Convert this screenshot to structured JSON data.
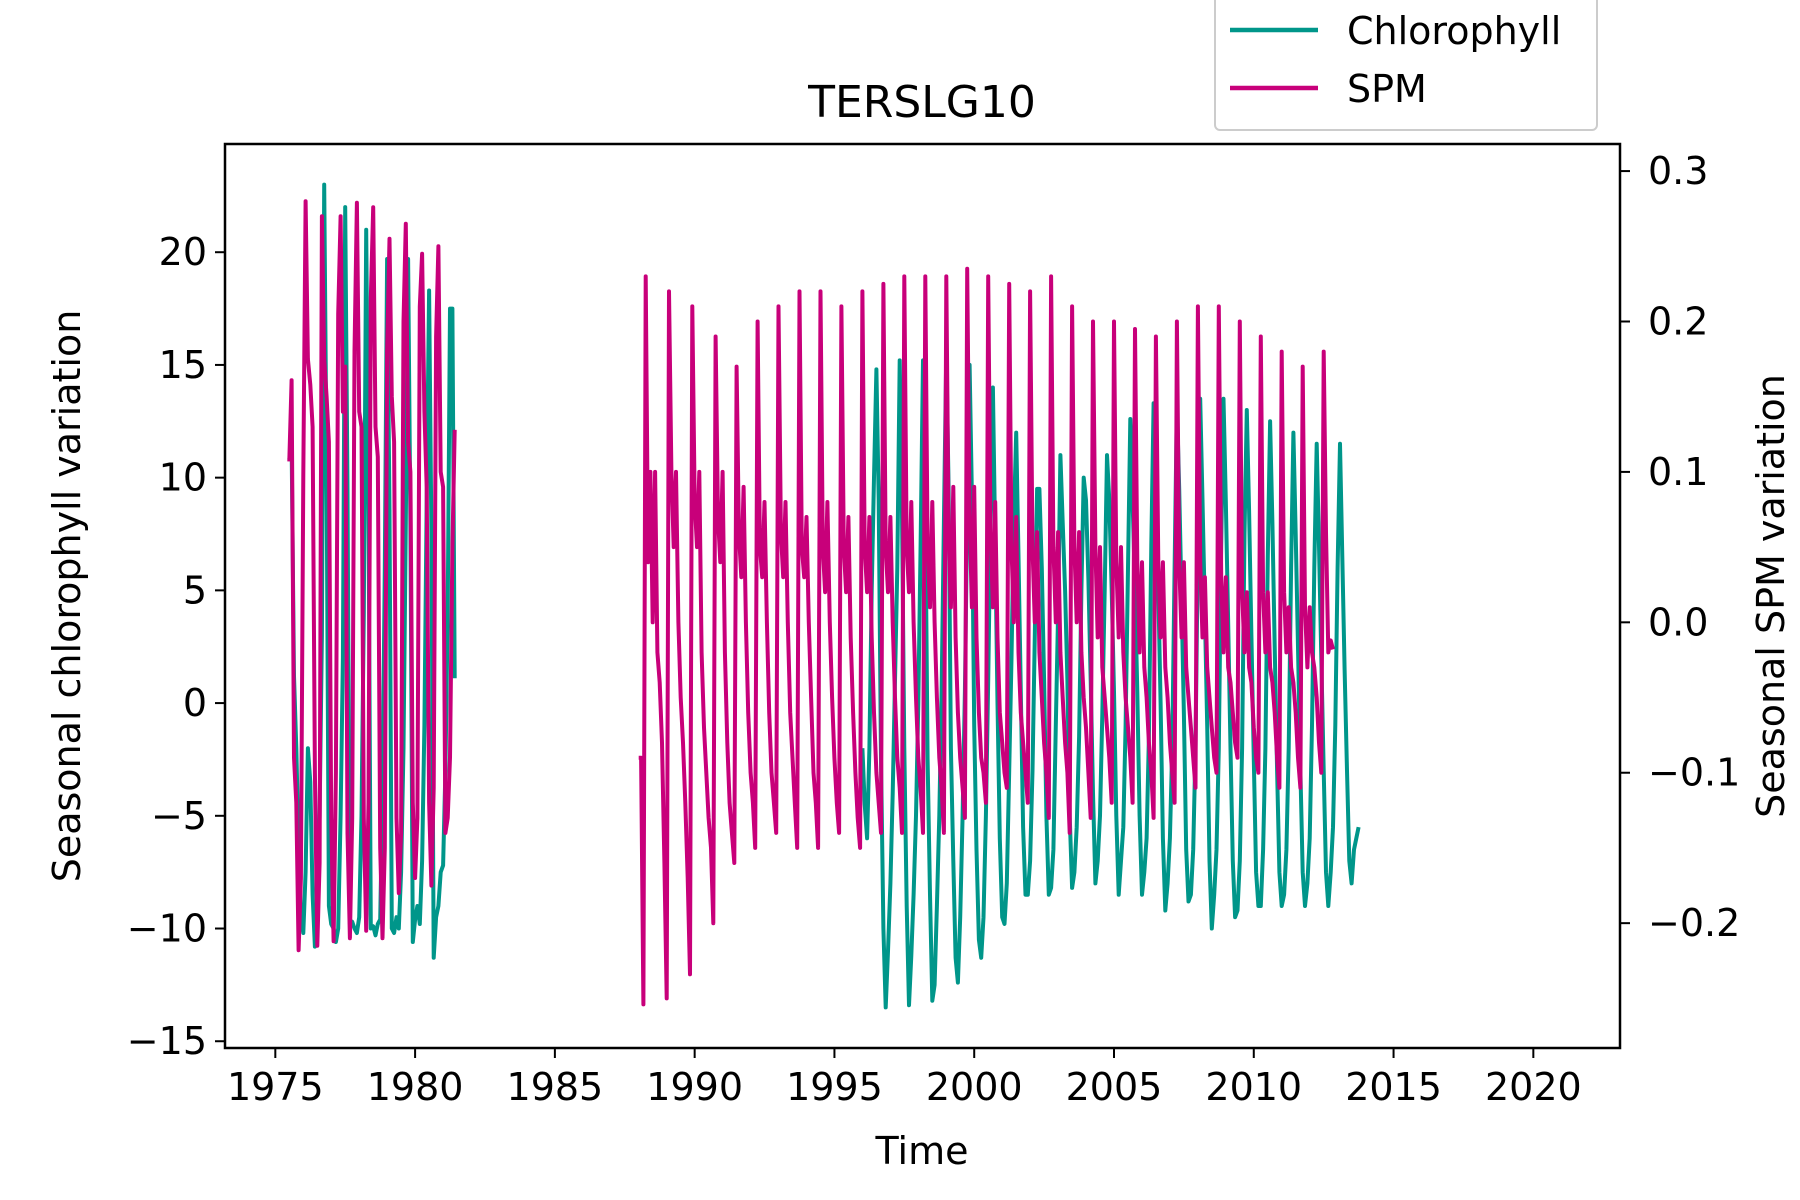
{
  "chart_data": {
    "type": "line",
    "title": "TERSLG10",
    "xlabel": "Time",
    "ylabel_left": "Seasonal chlorophyll variation",
    "ylabel_right": "Seasonal SPM variation",
    "xlim": [
      1973.2,
      2023.1
    ],
    "ylim_left": [
      -15.3,
      24.8
    ],
    "ylim_right": [
      -0.283,
      0.318
    ],
    "x_ticks": [
      1975,
      1980,
      1985,
      1990,
      1995,
      2000,
      2005,
      2010,
      2015,
      2020
    ],
    "x_tick_labels": [
      "1975",
      "1980",
      "1985",
      "1990",
      "1995",
      "2000",
      "2005",
      "2010",
      "2015",
      "2020"
    ],
    "y_left_ticks": [
      -15,
      -10,
      -5,
      0,
      5,
      10,
      15,
      20
    ],
    "y_left_tick_labels": [
      "−15",
      "−10",
      "−5",
      "0",
      "5",
      "10",
      "15",
      "20"
    ],
    "y_right_ticks": [
      -0.2,
      -0.1,
      0.0,
      0.1,
      0.2,
      0.3
    ],
    "y_right_tick_labels": [
      "−0.2",
      "−0.1",
      "0.0",
      "0.1",
      "0.2",
      "0.3"
    ],
    "grid": false,
    "legend_position": "top-right, above plot",
    "series": [
      {
        "name": "Chlorophyll",
        "axis": "left",
        "color": "#00968a",
        "segments": [
          {
            "start": 1975.5,
            "step": 0.0833333,
            "values": [
              10.8,
              11.5,
              1.2,
              -2.0,
              -6.5,
              -9.5,
              -10.2,
              -7.5,
              -2.0,
              -3.5,
              -8.5,
              -10.8,
              -9.0,
              -5.0,
              3.0,
              23.0,
              10.2,
              -9.0,
              -9.8,
              -10.0,
              -10.6,
              -10.0,
              -5.0,
              2.0,
              22.0,
              9.5,
              -9.8,
              -9.7,
              -10.0,
              -10.2,
              -9.5,
              -5.0,
              4.0,
              21.0,
              8.8,
              -10.0,
              -9.9,
              -10.3,
              -9.8,
              -9.6,
              -4.0,
              6.0,
              19.7,
              8.5,
              -10.0,
              -10.2,
              -9.5,
              -10.0,
              -7.5,
              -2.0,
              8.0,
              19.7,
              8.0,
              -10.6,
              -9.6,
              -9.0,
              -9.8,
              -7.0,
              -1.0,
              9.0,
              18.3,
              7.5,
              -11.3,
              -9.5,
              -9.0,
              -7.5,
              -7.2,
              -3.0,
              4.0,
              17.5,
              17.5,
              1.1
            ]
          },
          {
            "start": 1996.0,
            "step": 0.0833333,
            "values": [
              -2.0,
              -4.5,
              -6.0,
              -2.0,
              5.0,
              10.0,
              14.8,
              9.0,
              -2.5,
              -10.0,
              -13.5,
              -11.0,
              -8.0,
              -4.0,
              1.0,
              6.0,
              15.2,
              8.5,
              -2.0,
              -9.0,
              -13.4,
              -11.2,
              -8.5,
              -5.0,
              0.0,
              7.0,
              15.2,
              8.8,
              -2.5,
              -8.5,
              -13.2,
              -12.5,
              -9.0,
              -5.0,
              0.5,
              8.0,
              15.6,
              9.5,
              -2.0,
              -7.0,
              -11.3,
              -12.4,
              -9.5,
              -5.0,
              0.5,
              8.5,
              15.0,
              9.2,
              -1.0,
              -6.5,
              -10.5,
              -11.3,
              -9.5,
              -5.0,
              1.0,
              8.0,
              14.0,
              7.2,
              0.0,
              -6.0,
              -9.5,
              -9.8,
              -8.0,
              -3.0,
              2.0,
              8.0,
              12.0,
              6.5,
              0.5,
              -5.5,
              -8.5,
              -8.5,
              -7.0,
              -3.0,
              3.0,
              9.5,
              9.5,
              6.0,
              1.0,
              -5.0,
              -8.5,
              -8.2,
              -6.5,
              -1.0,
              4.0,
              11.0,
              8.0,
              5.0,
              1.0,
              -5.0,
              -8.2,
              -7.5,
              -5.5,
              -1.5,
              5.0,
              10.0,
              9.0,
              5.5,
              1.0,
              -4.0,
              -8.0,
              -7.0,
              -5.0,
              -0.5,
              5.0,
              11.0,
              9.0,
              5.0,
              0.5,
              -5.0,
              -8.5,
              -7.0,
              -5.5,
              -1.0,
              6.0,
              12.6,
              9.0,
              5.0,
              0.5,
              -5.0,
              -8.5,
              -7.5,
              -6.0,
              -1.5,
              7.0,
              13.3,
              9.5,
              5.0,
              0.0,
              -6.0,
              -9.2,
              -8.0,
              -6.0,
              -2.0,
              6.0,
              13.3,
              9.5,
              4.5,
              -0.5,
              -6.5,
              -8.8,
              -8.5,
              -6.5,
              -2.0,
              7.0,
              13.5,
              9.0,
              4.0,
              -1.0,
              -7.0,
              -10.0,
              -8.5,
              -6.5,
              -2.0,
              7.0,
              13.5,
              9.0,
              3.5,
              -2.0,
              -7.0,
              -9.5,
              -9.2,
              -7.0,
              -2.0,
              7.5,
              13.0,
              8.5,
              3.0,
              -2.5,
              -7.5,
              -9.0,
              -9.0,
              -6.5,
              -2.0,
              6.5,
              12.5,
              8.0,
              2.5,
              -3.0,
              -7.5,
              -9.0,
              -8.5,
              -6.5,
              -2.0,
              6.0,
              12.0,
              7.5,
              2.5,
              -3.0,
              -7.5,
              -9.0,
              -8.0,
              -6.0,
              -1.0,
              6.0,
              11.5,
              7.0,
              2.0,
              -3.0,
              -7.5,
              -9.0,
              -7.5,
              -5.5,
              -1.0,
              6.0,
              11.5,
              6.5,
              1.5,
              -3.0,
              -7.0,
              -8.0,
              -6.5,
              -6.0,
              -5.5
            ]
          }
        ]
      },
      {
        "name": "SPM",
        "axis": "right",
        "color": "#c8007a",
        "segments": [
          {
            "start": 1975.5,
            "step": 0.0833333,
            "values": [
              0.107,
              0.161,
              -0.09,
              -0.12,
              -0.218,
              -0.17,
              0.098,
              0.28,
              0.175,
              0.158,
              0.13,
              -0.1,
              -0.215,
              -0.16,
              0.27,
              0.175,
              0.15,
              0.12,
              -0.13,
              -0.212,
              -0.1,
              0.205,
              0.27,
              0.14,
              0.17,
              -0.14,
              -0.21,
              -0.13,
              0.18,
              0.279,
              0.14,
              0.13,
              -0.13,
              -0.205,
              -0.12,
              0.215,
              0.276,
              0.13,
              0.11,
              -0.15,
              -0.21,
              -0.15,
              0.18,
              0.255,
              0.15,
              0.12,
              -0.13,
              -0.18,
              -0.14,
              0.2,
              0.265,
              0.12,
              0.1,
              -0.12,
              -0.17,
              -0.13,
              0.21,
              0.245,
              0.14,
              0.09,
              -0.12,
              -0.175,
              -0.11,
              0.19,
              0.25,
              0.1,
              0.09,
              -0.14,
              -0.13,
              -0.09,
              0.05,
              0.128
            ]
          },
          {
            "start": 1988.0,
            "step": 0.0833333,
            "values": [
              -0.09,
              -0.09,
              -0.254,
              0.23,
              0.04,
              0.1,
              0.0,
              0.1,
              -0.02,
              -0.04,
              -0.08,
              -0.16,
              -0.25,
              0.22,
              0.1,
              0.05,
              0.1,
              0.0,
              -0.05,
              -0.08,
              -0.12,
              -0.17,
              -0.234,
              0.21,
              0.08,
              0.05,
              0.1,
              -0.02,
              -0.07,
              -0.1,
              -0.13,
              -0.15,
              -0.2,
              0.19,
              0.07,
              0.04,
              0.1,
              -0.02,
              -0.08,
              -0.12,
              -0.14,
              -0.16,
              0.17,
              0.06,
              0.03,
              0.09,
              0.0,
              -0.06,
              -0.1,
              -0.12,
              -0.15,
              0.2,
              0.05,
              0.03,
              0.08,
              0.0,
              -0.06,
              -0.1,
              -0.12,
              -0.14,
              0.21,
              0.06,
              0.03,
              0.08,
              0.0,
              -0.06,
              -0.09,
              -0.12,
              -0.15,
              0.22,
              0.05,
              0.03,
              0.07,
              0.0,
              -0.05,
              -0.1,
              -0.12,
              -0.15,
              0.22,
              0.05,
              0.02,
              0.08,
              0.0,
              -0.05,
              -0.09,
              -0.12,
              -0.14,
              0.21,
              0.05,
              0.02,
              0.07,
              -0.01,
              -0.06,
              -0.1,
              -0.13,
              -0.15,
              0.22,
              0.05,
              0.02,
              0.07,
              -0.01,
              -0.06,
              -0.1,
              -0.12,
              -0.14,
              0.225,
              0.05,
              0.02,
              0.07,
              0.0,
              -0.05,
              -0.09,
              -0.11,
              -0.14,
              0.23,
              0.05,
              0.02,
              0.08,
              0.0,
              -0.05,
              -0.09,
              -0.11,
              -0.14,
              0.23,
              0.05,
              0.01,
              0.08,
              0.0,
              -0.05,
              -0.09,
              -0.11,
              -0.14,
              0.23,
              0.06,
              0.01,
              0.09,
              -0.01,
              -0.06,
              -0.09,
              -0.11,
              -0.13,
              0.235,
              0.07,
              0.01,
              0.09,
              -0.01,
              -0.06,
              -0.09,
              -0.1,
              -0.12,
              0.23,
              0.06,
              0.01,
              0.08,
              -0.01,
              -0.06,
              -0.08,
              -0.1,
              -0.11,
              0.225,
              0.05,
              0.0,
              0.07,
              -0.02,
              -0.06,
              -0.08,
              -0.1,
              -0.12,
              0.22,
              0.05,
              0.0,
              0.06,
              -0.02,
              -0.05,
              -0.08,
              -0.1,
              -0.13,
              0.23,
              0.05,
              0.0,
              0.06,
              -0.02,
              -0.05,
              -0.08,
              -0.1,
              -0.14,
              0.21,
              0.05,
              0.0,
              0.06,
              -0.02,
              -0.05,
              -0.07,
              -0.1,
              -0.13,
              0.2,
              0.05,
              -0.01,
              0.05,
              -0.03,
              -0.05,
              -0.07,
              -0.09,
              -0.12,
              0.2,
              0.04,
              -0.01,
              0.05,
              -0.02,
              -0.05,
              -0.07,
              -0.09,
              -0.12,
              0.195,
              0.04,
              -0.02,
              0.04,
              -0.03,
              -0.05,
              -0.08,
              -0.1,
              -0.13,
              0.19,
              0.04,
              -0.01,
              0.04,
              -0.03,
              -0.05,
              -0.08,
              -0.1,
              -0.12,
              0.2,
              0.04,
              -0.01,
              0.04,
              -0.03,
              -0.05,
              -0.07,
              -0.09,
              -0.11,
              0.21,
              0.04,
              -0.01,
              0.03,
              -0.03,
              -0.05,
              -0.07,
              -0.09,
              -0.1,
              0.21,
              0.03,
              -0.02,
              0.03,
              -0.03,
              -0.04,
              -0.06,
              -0.08,
              -0.09,
              0.2,
              0.02,
              -0.02,
              0.02,
              -0.03,
              -0.04,
              -0.07,
              -0.09,
              -0.1,
              0.19,
              0.02,
              -0.02,
              0.02,
              -0.03,
              -0.04,
              -0.06,
              -0.09,
              -0.11,
              0.18,
              0.02,
              -0.02,
              0.01,
              -0.03,
              -0.04,
              -0.06,
              -0.09,
              -0.11,
              0.17,
              0.01,
              -0.03,
              0.01,
              -0.02,
              -0.03,
              -0.05,
              -0.08,
              -0.1,
              0.18,
              0.06,
              -0.02,
              -0.012,
              -0.018
            ]
          }
        ]
      }
    ]
  }
}
